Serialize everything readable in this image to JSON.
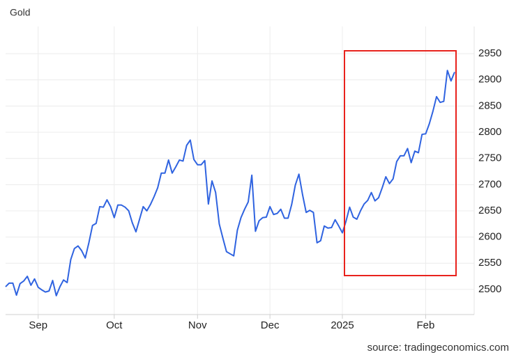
{
  "chart_data": {
    "type": "line",
    "title": "Gold",
    "source": "source: tradingeconomics.com",
    "categories": [
      null,
      null,
      null,
      null,
      null,
      null,
      null,
      null,
      null,
      "Sep",
      null,
      null,
      null,
      null,
      null,
      null,
      null,
      null,
      null,
      null,
      null,
      null,
      null,
      null,
      null,
      null,
      null,
      null,
      null,
      null,
      "Oct",
      null,
      null,
      null,
      null,
      null,
      null,
      null,
      null,
      null,
      null,
      null,
      null,
      null,
      null,
      null,
      null,
      null,
      null,
      null,
      null,
      null,
      null,
      "Nov",
      null,
      null,
      null,
      null,
      null,
      null,
      null,
      null,
      null,
      null,
      null,
      null,
      null,
      null,
      null,
      null,
      null,
      null,
      null,
      "Dec",
      null,
      null,
      null,
      null,
      null,
      null,
      null,
      null,
      null,
      null,
      null,
      null,
      null,
      null,
      null,
      null,
      null,
      null,
      null,
      "2025",
      null,
      null,
      null,
      null,
      null,
      null,
      null,
      null,
      null,
      null,
      null,
      null,
      null,
      null,
      null,
      null,
      null,
      null,
      null,
      null,
      null,
      null,
      "Feb",
      null,
      null,
      null,
      null,
      null,
      null,
      null,
      null
    ],
    "values": [
      2505,
      2512,
      2512,
      2489,
      2511,
      2516,
      2525,
      2508,
      2520,
      2504,
      2499,
      2495,
      2497,
      2517,
      2488,
      2505,
      2518,
      2513,
      2557,
      2578,
      2583,
      2574,
      2560,
      2589,
      2622,
      2626,
      2658,
      2657,
      2671,
      2658,
      2637,
      2661,
      2661,
      2657,
      2650,
      2627,
      2610,
      2634,
      2658,
      2650,
      2662,
      2677,
      2694,
      2722,
      2722,
      2747,
      2722,
      2734,
      2747,
      2745,
      2775,
      2785,
      2748,
      2738,
      2738,
      2746,
      2663,
      2707,
      2685,
      2625,
      2598,
      2572,
      2568,
      2564,
      2613,
      2637,
      2653,
      2667,
      2718,
      2611,
      2631,
      2637,
      2638,
      2658,
      2643,
      2645,
      2653,
      2636,
      2636,
      2662,
      2699,
      2720,
      2681,
      2647,
      2651,
      2647,
      2589,
      2593,
      2621,
      2617,
      2618,
      2633,
      2621,
      2608,
      2630,
      2657,
      2638,
      2634,
      2650,
      2663,
      2670,
      2685,
      2669,
      2675,
      2694,
      2715,
      2702,
      2711,
      2744,
      2755,
      2755,
      2769,
      2742,
      2764,
      2761,
      2796,
      2797,
      2816,
      2840,
      2868,
      2857,
      2859,
      2918,
      2898,
      2915
    ],
    "color": "#2f63e0",
    "ylim": [
      2452,
      3002
    ],
    "yticks": [
      2500,
      2550,
      2600,
      2650,
      2700,
      2750,
      2800,
      2850,
      2900,
      2950
    ],
    "grid": true
  }
}
